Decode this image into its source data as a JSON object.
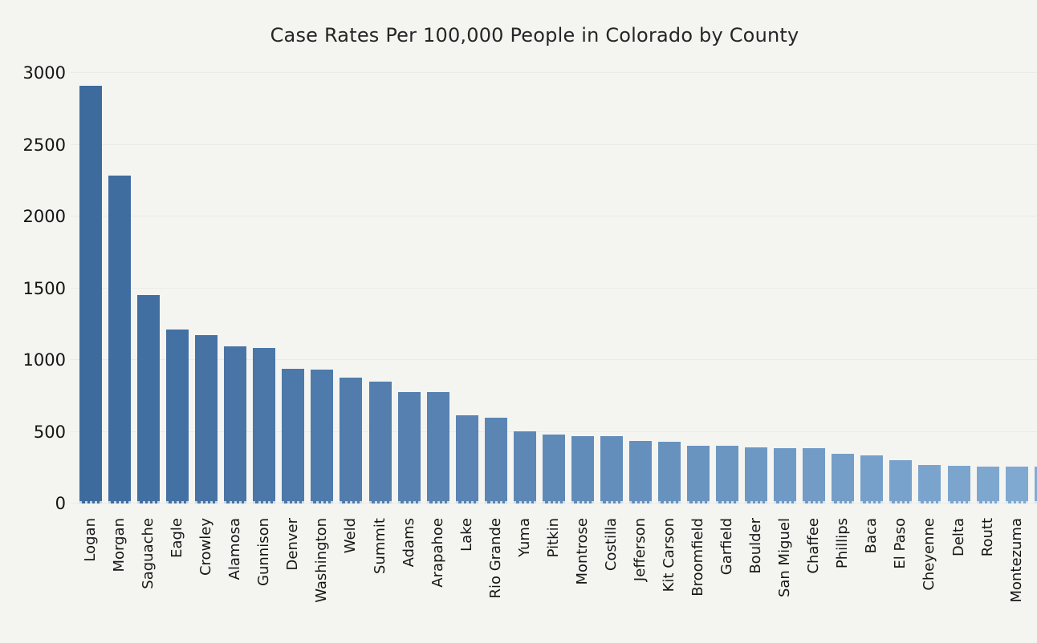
{
  "chart_data": {
    "type": "bar",
    "title": "Case Rates Per 100,000 People in Colorado by County",
    "xlabel": "",
    "ylabel": "",
    "categories": [
      "Logan",
      "Morgan",
      "Saguache",
      "Eagle",
      "Crowley",
      "Alamosa",
      "Gunnison",
      "Denver",
      "Washington",
      "Weld",
      "Summit",
      "Adams",
      "Arapahoe",
      "Lake",
      "Rio Grande",
      "Yuma",
      "Pitkin",
      "Montrose",
      "Costilla",
      "Jefferson",
      "Kit Carson",
      "Broomfield",
      "Garfield",
      "Boulder",
      "San Miguel",
      "Chaffee",
      "Phillips",
      "Baca",
      "El Paso",
      "Cheyenne",
      "Delta",
      "Routt",
      "Montezuma"
    ],
    "values": [
      2910,
      2285,
      1450,
      1210,
      1175,
      1095,
      1085,
      940,
      935,
      875,
      850,
      775,
      775,
      615,
      595,
      505,
      480,
      470,
      470,
      435,
      430,
      400,
      400,
      390,
      385,
      385,
      345,
      335,
      300,
      270,
      260,
      255,
      258
    ],
    "partial_bar_value": 256,
    "partial_bar_label": "",
    "yticks": [
      0,
      500,
      1000,
      1500,
      2000,
      2500,
      3000
    ],
    "ylim": [
      0,
      3000
    ],
    "grid": true,
    "legend": false,
    "tick_label_rotation": 90,
    "colors": {
      "background": "#f4f4f1",
      "bar_gradient_start": "#3E6B9E",
      "bar_gradient_end": "#82ABD3",
      "gridline": "#e4e4e1",
      "text": "#161616",
      "title_text": "#262626"
    }
  }
}
